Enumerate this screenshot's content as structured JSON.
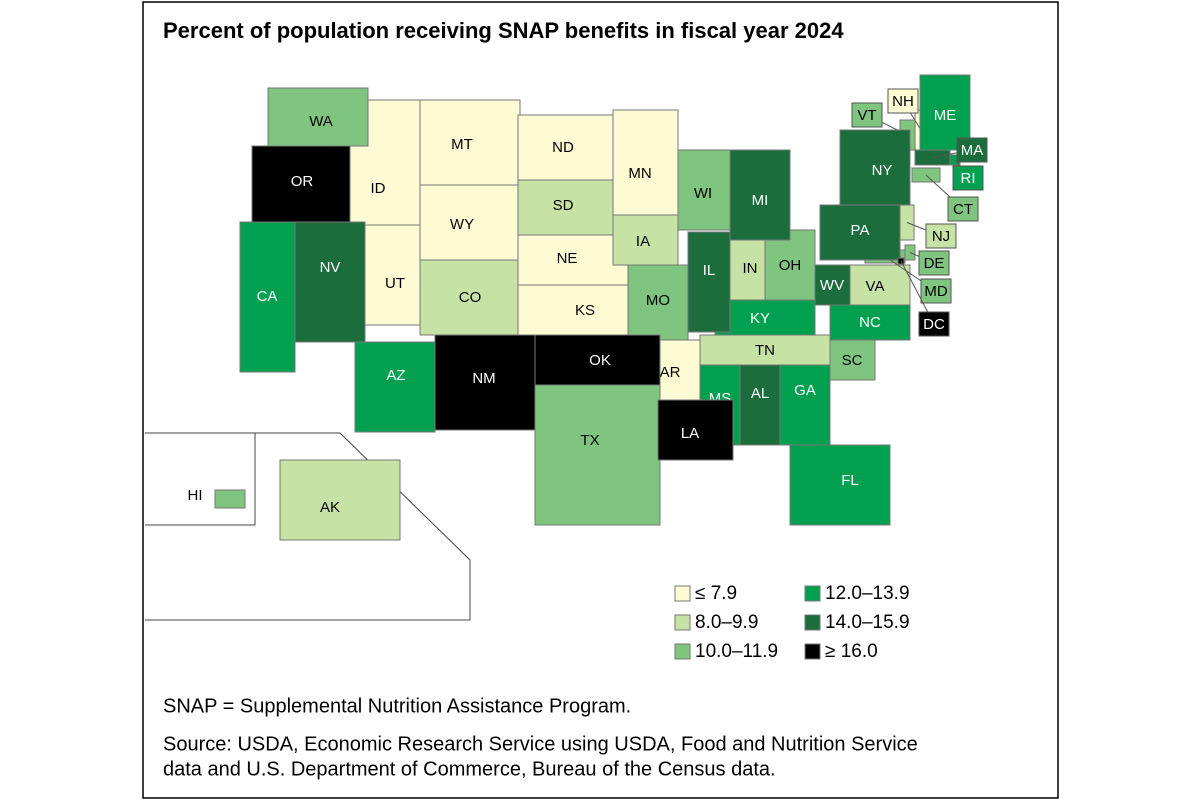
{
  "title": "Percent of population receiving SNAP benefits in fiscal year 2024",
  "legend": [
    {
      "label": "≤ 7.9",
      "color": "#fdfbd4",
      "states": [
        "MT",
        "ID",
        "WY",
        "UT",
        "ND",
        "MN",
        "NE",
        "KS",
        "AR",
        "NH"
      ]
    },
    {
      "label": "8.0–9.9",
      "color": "#c6e3a5",
      "states": [
        "SD",
        "CO",
        "IA",
        "IN",
        "VA",
        "TN",
        "NJ",
        "AK"
      ]
    },
    {
      "label": "10.0–11.9",
      "color": "#7fc47f",
      "states": [
        "WA",
        "WI",
        "MO",
        "TX",
        "OH",
        "SC",
        "VT",
        "CT",
        "DE",
        "MD",
        "HI"
      ]
    },
    {
      "label": "12.0–13.9",
      "color": "#00a050",
      "states": [
        "CA",
        "AZ",
        "KY",
        "NC",
        "MS",
        "GA",
        "FL",
        "ME",
        "RI"
      ]
    },
    {
      "label": "14.0–15.9",
      "color": "#1b6e3c",
      "states": [
        "NV",
        "IL",
        "MI",
        "PA",
        "NY",
        "WV",
        "AL",
        "MA"
      ]
    },
    {
      "label": "≥ 16.0",
      "color": "#000000",
      "states": [
        "OR",
        "NM",
        "OK",
        "LA",
        "DC"
      ]
    }
  ],
  "notes": {
    "abbreviation": "SNAP = Supplemental Nutrition Assistance Program.",
    "source": [
      "Source: USDA, Economic Research Service using USDA, Food and Nutrition Service",
      "data and U.S. Department of Commerce, Bureau of the Census data."
    ]
  }
}
